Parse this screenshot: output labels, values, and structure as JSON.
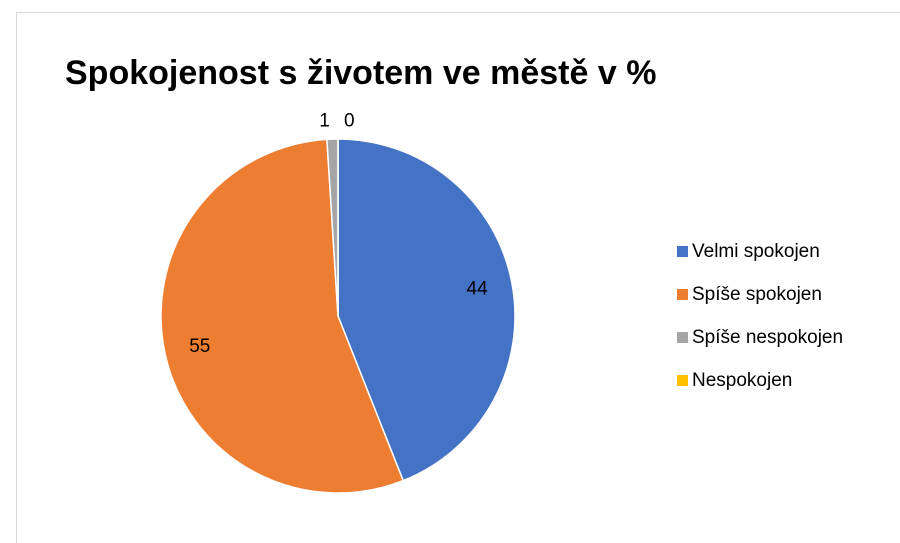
{
  "chart_data": {
    "type": "pie",
    "title": "Spokojenost s životem ve městě v %",
    "categories": [
      "Velmi spokojen",
      "Spíše spokojen",
      "Spíše nespokojen",
      "Nespokojen"
    ],
    "values": [
      44,
      55,
      1,
      0
    ],
    "colors": [
      "#4472c4",
      "#ed7d31",
      "#a5a5a5",
      "#ffc000"
    ],
    "legend": "right"
  }
}
